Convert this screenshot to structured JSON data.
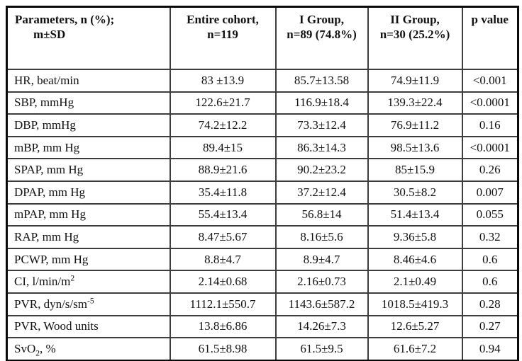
{
  "table": {
    "header": {
      "parameters_line1": "Parameters, n (%);",
      "parameters_line2": "m±SD",
      "entire_line1": "Entire cohort,",
      "entire_line2": "n=119",
      "group1_line1": "I Group,",
      "group1_line2": "n=89 (74.8%)",
      "group2_line1": "II Group,",
      "group2_line2": "n=30 (25.2%)",
      "p_value": "p value"
    },
    "rows": [
      {
        "param": "HR, beat/min",
        "cohort": "83 ±13.9",
        "group1": "85.7±13.58",
        "group2": "74.9±11.9",
        "p": "<0.001"
      },
      {
        "param": "SBP, mmHg",
        "cohort": "122.6±21.7",
        "group1": "116.9±18.4",
        "group2": "139.3±22.4",
        "p": "<0.0001"
      },
      {
        "param": "DBP, mmHg",
        "cohort": "74.2±12.2",
        "group1": "73.3±12.4",
        "group2": "76.9±11.2",
        "p": "0.16"
      },
      {
        "param": "mBP, mm Hg",
        "cohort": "89.4±15",
        "group1": "86.3±14.3",
        "group2": "98.5±13.6",
        "p": "<0.0001"
      },
      {
        "param": "SPAP, mm Hg",
        "cohort": "88.9±21.6",
        "group1": "90.2±23.2",
        "group2": "85±15.9",
        "p": "0.26"
      },
      {
        "param": "DPAP, mm Hg",
        "cohort": "35.4±11.8",
        "group1": "37.2±12.4",
        "group2": "30.5±8.2",
        "p": "0.007"
      },
      {
        "param": "mPAP, mm Hg",
        "cohort": "55.4±13.4",
        "group1": "56.8±14",
        "group2": "51.4±13.4",
        "p": "0.055"
      },
      {
        "param": "RAP, mm Hg",
        "cohort": "8.47±5.67",
        "group1": "8.16±5.6",
        "group2": "9.36±5.8",
        "p": "0.32"
      },
      {
        "param": "PCWP, mm Hg",
        "cohort": "8.8±4.7",
        "group1": "8.9±4.7",
        "group2": "8.46±4.6",
        "p": "0.6"
      },
      {
        "param": "CI, l/min/m",
        "param_sup": "2",
        "cohort": "2.14±0.68",
        "group1": "2.16±0.73",
        "group2": "2.1±0.49",
        "p": "0.6"
      },
      {
        "param": "PVR, dyn/s/sm",
        "param_sup": "-5",
        "cohort": "1112.1±550.7",
        "group1": "1143.6±587.2",
        "group2": "1018.5±419.3",
        "p": "0.28"
      },
      {
        "param": "PVR, Wood units",
        "cohort": "13.8±6.86",
        "group1": "14.26±7.3",
        "group2": "12.6±5.27",
        "p": "0.27"
      },
      {
        "param": "SvO",
        "param_sub": "2",
        "param_tail": ", %",
        "cohort": "61.5±8.98",
        "group1": "61.5±9.5",
        "group2": "61.6±7.2",
        "p": "0.94"
      }
    ]
  }
}
